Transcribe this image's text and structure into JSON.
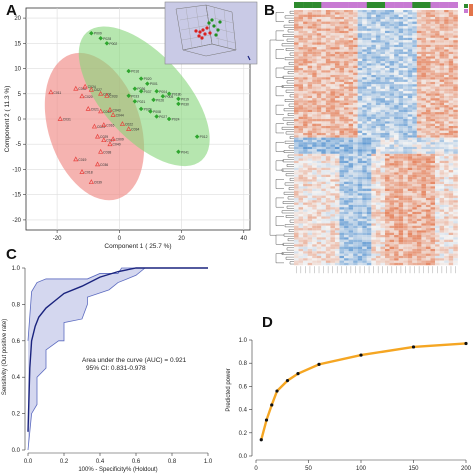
{
  "panels": {
    "a": {
      "letter": "A"
    },
    "b": {
      "letter": "B"
    },
    "c": {
      "letter": "C"
    },
    "d": {
      "letter": "D"
    }
  },
  "chart_data": [
    {
      "panel": "A",
      "type": "scatter",
      "xlabel": "Component 1 ( 25.7 %)",
      "ylabel": "Component 2 ( 11.3 %)",
      "xlim": [
        -30,
        42
      ],
      "ylim": [
        -22,
        22
      ],
      "xticks": [
        -20,
        0,
        20,
        40
      ],
      "yticks": [
        -20,
        -15,
        -10,
        -5,
        0,
        5,
        10,
        15,
        20
      ],
      "colors": {
        "group_red": "#e8413d",
        "group_green": "#2ea62e",
        "ellipse_red": "#f08a86",
        "ellipse_green": "#86d67a"
      },
      "series": [
        {
          "marker": "triangle",
          "points": [
            {
              "x": -22,
              "y": 5.3,
              "label": "C011"
            },
            {
              "x": -14,
              "y": 6.0,
              "label": "C035"
            },
            {
              "x": -11,
              "y": 6.4,
              "label": "C024"
            },
            {
              "x": -9,
              "y": 5.8,
              "label": "C027"
            },
            {
              "x": -12,
              "y": 4.5,
              "label": "C020"
            },
            {
              "x": -6,
              "y": 5.0,
              "label": "C006"
            },
            {
              "x": -4,
              "y": 4.6,
              "label": "C033"
            },
            {
              "x": -10,
              "y": 2.0,
              "label": "C021"
            },
            {
              "x": -6,
              "y": 1.5,
              "label": "C012"
            },
            {
              "x": -3,
              "y": 1.8,
              "label": "C043"
            },
            {
              "x": -2,
              "y": 0.8,
              "label": "C044"
            },
            {
              "x": -19,
              "y": 0.0,
              "label": "C031"
            },
            {
              "x": -8,
              "y": -1.5,
              "label": "C023"
            },
            {
              "x": -5,
              "y": -1.2,
              "label": "C016"
            },
            {
              "x": 1,
              "y": -1.0,
              "label": "C022"
            },
            {
              "x": 3,
              "y": -2.0,
              "label": "C034"
            },
            {
              "x": -7,
              "y": -3.5,
              "label": "C029"
            },
            {
              "x": -5,
              "y": -4.2,
              "label": "C017"
            },
            {
              "x": -2,
              "y": -4.0,
              "label": "C009"
            },
            {
              "x": -3,
              "y": -5.0,
              "label": "C040"
            },
            {
              "x": -6,
              "y": -6.5,
              "label": "C038"
            },
            {
              "x": -14,
              "y": -8.0,
              "label": "C019"
            },
            {
              "x": -7,
              "y": -9.0,
              "label": "C036"
            },
            {
              "x": -12,
              "y": -10.5,
              "label": "C018"
            },
            {
              "x": -9,
              "y": -12.5,
              "label": "C039"
            }
          ]
        },
        {
          "marker": "diamond",
          "points": [
            {
              "x": -9,
              "y": 17.0,
              "label": "P009"
            },
            {
              "x": -6,
              "y": 16.0,
              "label": "P028"
            },
            {
              "x": -4,
              "y": 15.0,
              "label": "P002"
            },
            {
              "x": 3,
              "y": 9.5,
              "label": "P016"
            },
            {
              "x": 7,
              "y": 8.0,
              "label": "P020"
            },
            {
              "x": 9,
              "y": 7.0,
              "label": "P001"
            },
            {
              "x": 12,
              "y": 5.5,
              "label": "P004"
            },
            {
              "x": 14,
              "y": 4.5,
              "label": "P005"
            },
            {
              "x": 16,
              "y": 5.0,
              "label": "P018b"
            },
            {
              "x": 19,
              "y": 4.0,
              "label": "P019"
            },
            {
              "x": 19,
              "y": 3.0,
              "label": "P030"
            },
            {
              "x": 11,
              "y": 3.8,
              "label": "P026"
            },
            {
              "x": 5,
              "y": 6.0,
              "label": "P036"
            },
            {
              "x": 7,
              "y": 5.5,
              "label": "P037"
            },
            {
              "x": 3,
              "y": 4.6,
              "label": "P033"
            },
            {
              "x": 5,
              "y": 3.5,
              "label": "P021"
            },
            {
              "x": 7,
              "y": 2.0,
              "label": "P029"
            },
            {
              "x": 10,
              "y": 1.5,
              "label": "P008"
            },
            {
              "x": 12,
              "y": 0.5,
              "label": "P027"
            },
            {
              "x": 16,
              "y": 0.0,
              "label": "P024"
            },
            {
              "x": 25,
              "y": -3.5,
              "label": "P012"
            },
            {
              "x": 19,
              "y": -6.5,
              "label": "P041"
            }
          ]
        }
      ]
    },
    {
      "panel": "C",
      "type": "line",
      "xlabel": "100% - Specificity% (Holdout)",
      "ylabel": "Sensitivity (Out positive rate)",
      "xlim": [
        0,
        1
      ],
      "ylim": [
        0,
        1
      ],
      "xticks": [
        0.0,
        0.2,
        0.4,
        0.6,
        0.8,
        1.0
      ],
      "yticks": [
        0.0,
        0.2,
        0.4,
        0.6,
        0.8,
        1.0
      ],
      "colors": {
        "curve": "#1a237e",
        "band": "#c5cae9",
        "band_edge": "#5c6bc0"
      },
      "series": [
        {
          "x": [
            0.0,
            0.01,
            0.02,
            0.04,
            0.06,
            0.1,
            0.15,
            0.2,
            0.3,
            0.4,
            0.5,
            0.6,
            0.7,
            1.0
          ],
          "y": [
            0.1,
            0.45,
            0.6,
            0.68,
            0.73,
            0.78,
            0.82,
            0.86,
            0.9,
            0.95,
            0.98,
            1.0,
            1.0,
            1.0
          ]
        }
      ],
      "ci_upper": {
        "x": [
          0.0,
          0.02,
          0.05,
          0.1,
          0.2,
          0.33,
          0.4,
          0.5,
          0.52,
          0.65,
          0.7,
          1.0
        ],
        "y": [
          0.6,
          0.87,
          0.92,
          0.94,
          0.94,
          0.94,
          0.97,
          0.97,
          1.0,
          1.0,
          1.0,
          1.0
        ]
      },
      "ci_lower": {
        "x": [
          0.0,
          0.02,
          0.05,
          0.05,
          0.1,
          0.1,
          0.17,
          0.2,
          0.2,
          0.3,
          0.33,
          0.33,
          0.45,
          0.5,
          0.6,
          0.65
        ],
        "y": [
          0.0,
          0.2,
          0.25,
          0.4,
          0.45,
          0.55,
          0.6,
          0.6,
          0.7,
          0.72,
          0.8,
          0.84,
          0.88,
          0.92,
          0.96,
          1.0
        ]
      },
      "annotation": [
        "Area under the curve (AUC) = 0.921",
        "95% CI: 0.831-0.978"
      ]
    },
    {
      "panel": "D",
      "type": "line",
      "xlabel": "",
      "ylabel": "Predicted power",
      "xlim": [
        0,
        200
      ],
      "ylim": [
        0,
        1
      ],
      "xticks": [
        0,
        50,
        100,
        150,
        200
      ],
      "yticks": [
        0.0,
        0.2,
        0.4,
        0.6,
        0.8,
        1.0
      ],
      "colors": {
        "line": "#f5a623",
        "point": "#111111"
      },
      "series": [
        {
          "x": [
            5,
            10,
            15,
            20,
            30,
            40,
            60,
            100,
            150,
            200
          ],
          "y": [
            0.14,
            0.31,
            0.44,
            0.56,
            0.65,
            0.71,
            0.79,
            0.87,
            0.94,
            0.97
          ]
        }
      ]
    }
  ],
  "heatmap": {
    "top_bar_colors": [
      "#2e8b2e",
      "#2e8b2e",
      "#2e8b2e",
      "#c87ad3",
      "#c87ad3",
      "#c87ad3",
      "#c87ad3",
      "#c87ad3",
      "#2e8b2e",
      "#2e8b2e",
      "#c87ad3",
      "#c87ad3",
      "#c87ad3",
      "#2e8b2e",
      "#2e8b2e",
      "#c87ad3",
      "#c87ad3",
      "#c87ad3"
    ],
    "low_color": "#4f8fcf",
    "mid_color": "#f3f3f3",
    "high_color": "#e3744a"
  }
}
